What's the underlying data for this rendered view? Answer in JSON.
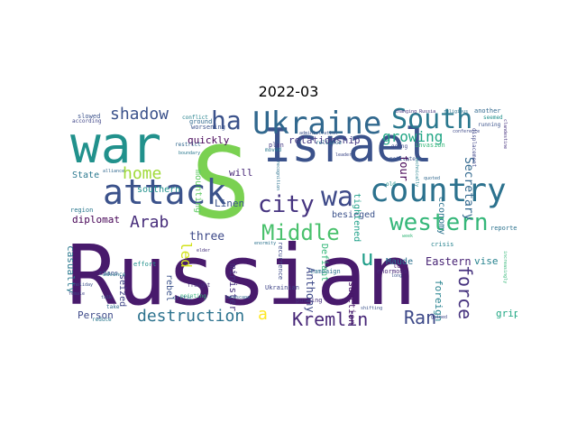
{
  "title": "2022-03",
  "words": [
    {
      "text": "Russian",
      "color": "#481a6c"
    },
    {
      "text": "Israel",
      "color": "#3b528b"
    },
    {
      "text": "war",
      "color": "#21918c"
    },
    {
      "text": "S",
      "color": "#7ad151"
    },
    {
      "text": "country",
      "color": "#2c728e"
    },
    {
      "text": "Ukraine",
      "color": "#31688e"
    },
    {
      "text": "attack",
      "color": "#3b528b"
    },
    {
      "text": "South",
      "color": "#2a788e"
    },
    {
      "text": "western",
      "color": "#35b779"
    },
    {
      "text": "Middle",
      "color": "#4ac16d"
    },
    {
      "text": "wa",
      "color": "#3e4a89"
    },
    {
      "text": "ha",
      "color": "#3b528b"
    },
    {
      "text": "city",
      "color": "#463480"
    },
    {
      "text": "destruction",
      "color": "#2c728e"
    },
    {
      "text": "Kremlin",
      "color": "#482878"
    },
    {
      "text": "Ran",
      "color": "#3e4a89"
    },
    {
      "text": "force",
      "color": "#46327e"
    },
    {
      "text": "shadow",
      "color": "#3b528b"
    },
    {
      "text": "home",
      "color": "#a0da39"
    },
    {
      "text": "Arab",
      "color": "#472d7b"
    },
    {
      "text": "growing",
      "color": "#21a685"
    },
    {
      "text": "led",
      "color": "#d2e21b"
    },
    {
      "text": "u",
      "color": "#1f9e89"
    },
    {
      "text": "a",
      "color": "#fde725"
    },
    {
      "text": "three",
      "color": "#3e4a89"
    },
    {
      "text": "relationship",
      "color": "#443983"
    },
    {
      "text": "quickly",
      "color": "#450457"
    },
    {
      "text": "diplomat",
      "color": "#440154"
    },
    {
      "text": "Secretary",
      "color": "#31688e"
    },
    {
      "text": "Linen",
      "color": "#3b528b"
    },
    {
      "text": "Maude",
      "color": "#2c728e"
    },
    {
      "text": "Eastern",
      "color": "#482475"
    },
    {
      "text": "vise",
      "color": "#26828e"
    },
    {
      "text": "Person",
      "color": "#3e4a89"
    },
    {
      "text": "casualty",
      "color": "#2a788e"
    },
    {
      "text": "seized",
      "color": "#404688"
    },
    {
      "text": "rebel",
      "color": "#3b528b"
    },
    {
      "text": "minister",
      "color": "#46327e"
    },
    {
      "text": "Anthony",
      "color": "#3e4a89"
    },
    {
      "text": "Defiant",
      "color": "#35b779"
    },
    {
      "text": "sanction",
      "color": "#481668"
    },
    {
      "text": "foreign",
      "color": "#26828e"
    },
    {
      "text": "economy",
      "color": "#2c728e"
    },
    {
      "text": "four",
      "color": "#440154"
    },
    {
      "text": "grip",
      "color": "#22a884"
    },
    {
      "text": "will",
      "color": "#482878"
    },
    {
      "text": "mounting",
      "color": "#5ec962"
    },
    {
      "text": "southern",
      "color": "#21918c"
    },
    {
      "text": "State",
      "color": "#2a788e"
    },
    {
      "text": "besieged",
      "color": "#3b528b"
    },
    {
      "text": "tightened",
      "color": "#1fa088"
    },
    {
      "text": "worsening",
      "color": "#3b528b"
    },
    {
      "text": "plan",
      "color": "#443983"
    },
    {
      "text": "ground",
      "color": "#31688e"
    },
    {
      "text": "campaign",
      "color": "#2c728e"
    },
    {
      "text": "Ukrainian",
      "color": "#404688"
    },
    {
      "text": "pushing",
      "color": "#46327e"
    },
    {
      "text": "enormous",
      "color": "#482878"
    },
    {
      "text": "reported",
      "color": "#2c728e"
    },
    {
      "text": "long",
      "color": "#481a6c"
    },
    {
      "text": "crisis",
      "color": "#26828e"
    },
    {
      "text": "effort",
      "color": "#21918c"
    },
    {
      "text": "chaos",
      "color": "#3e4a89"
    },
    {
      "text": "region",
      "color": "#2a788e"
    },
    {
      "text": "invasion",
      "color": "#35b779"
    },
    {
      "text": "another",
      "color": "#31688e"
    },
    {
      "text": "slowed",
      "color": "#3b528b"
    },
    {
      "text": "conflict",
      "color": "#26828e"
    },
    {
      "text": "recurrence",
      "color": "#3e4a89"
    },
    {
      "text": "pointing",
      "color": "#35b779"
    },
    {
      "text": "fraught",
      "color": "#472d7b"
    },
    {
      "text": "critic",
      "color": "#31688e"
    },
    {
      "text": "advance",
      "color": "#2a788e"
    },
    {
      "text": "displacement",
      "color": "#404688"
    },
    {
      "text": "running",
      "color": "#3b528b"
    },
    {
      "text": "clandestine",
      "color": "#46327e"
    },
    {
      "text": "seemed",
      "color": "#21918c"
    },
    {
      "text": "reliance",
      "color": "#2c728e"
    },
    {
      "text": "going",
      "color": "#3e4a89"
    },
    {
      "text": "motivate",
      "color": "#3b528b"
    },
    {
      "text": "restrict",
      "color": "#31688e"
    },
    {
      "text": "according",
      "color": "#404688"
    },
    {
      "text": "moved",
      "color": "#2a788e"
    },
    {
      "text": "administration",
      "color": "#3b528b"
    },
    {
      "text": "alliance",
      "color": "#31688e"
    },
    {
      "text": "recognition",
      "color": "#2c728e"
    },
    {
      "text": "leader",
      "color": "#3e4a89"
    },
    {
      "text": "changing Russia",
      "color": "#46327e"
    },
    {
      "text": "religious",
      "color": "#2c728e"
    },
    {
      "text": "technically",
      "color": "#26828e"
    },
    {
      "text": "week",
      "color": "#35b779"
    },
    {
      "text": "long",
      "color": "#3b528b"
    },
    {
      "text": "gained",
      "color": "#404688"
    },
    {
      "text": "reduce",
      "color": "#2a788e"
    },
    {
      "text": "take",
      "color": "#31688e"
    },
    {
      "text": "talk",
      "color": "#3b528b"
    },
    {
      "text": "conference",
      "color": "#3e4a89"
    },
    {
      "text": "old",
      "color": "#21918c"
    },
    {
      "text": "enormity",
      "color": "#2c728e"
    },
    {
      "text": "elder",
      "color": "#46327e"
    },
    {
      "text": "landscape",
      "color": "#31688e"
    },
    {
      "text": "increasingly",
      "color": "#35b779"
    },
    {
      "text": "shifting",
      "color": "#3b528b"
    },
    {
      "text": "boundary",
      "color": "#2a788e"
    },
    {
      "text": "female",
      "color": "#404688"
    },
    {
      "text": "holiday",
      "color": "#3b528b"
    },
    {
      "text": "quoted",
      "color": "#31688e"
    }
  ]
}
